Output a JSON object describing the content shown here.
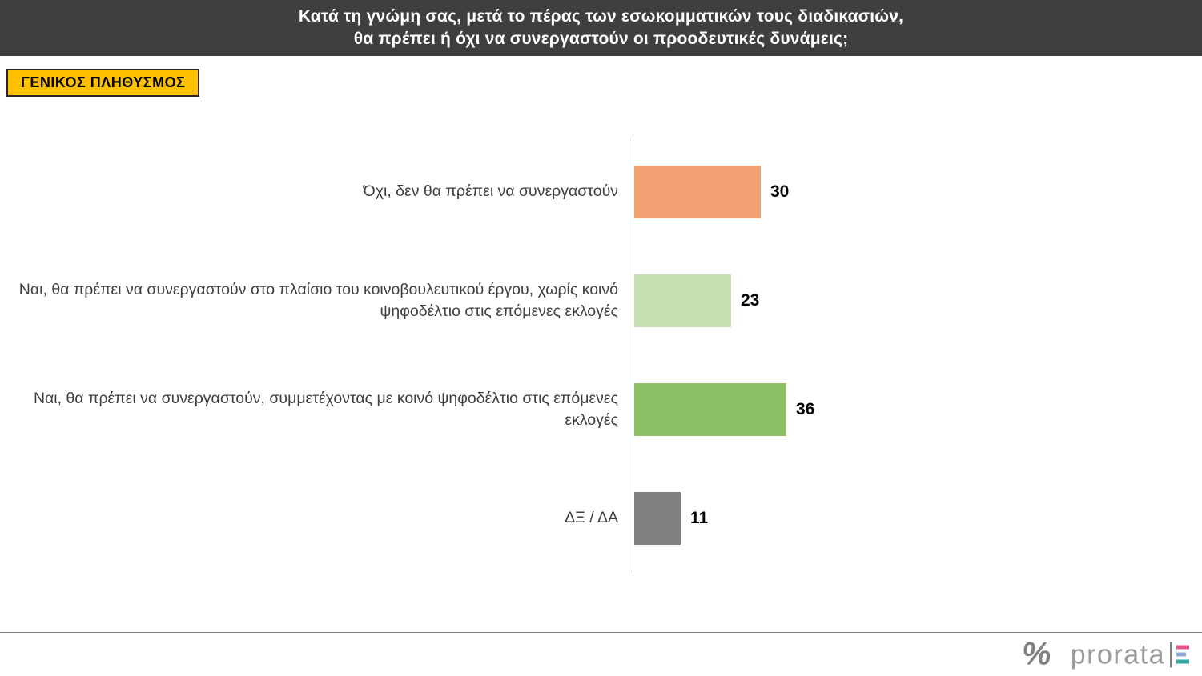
{
  "header": {
    "line1": "Κατά τη γνώμη σας, μετά το πέρας των εσωκομματικών τους διαδικασιών,",
    "line2": "θα πρέπει ή όχι να συνεργαστούν οι προοδευτικές δυνάμεις;"
  },
  "badge": {
    "label": "ΓΕΝΙΚΟΣ ΠΛΗΘΥΣΜΟΣ"
  },
  "chart_data": {
    "type": "bar",
    "orientation": "horizontal",
    "title": "Κατά τη γνώμη σας, μετά το πέρας των εσωκομματικών τους διαδικασιών, θα πρέπει ή όχι να συνεργαστούν οι προοδευτικές δυνάμεις;",
    "subtitle": "ΓΕΝΙΚΟΣ ΠΛΗΘΥΣΜΟΣ",
    "categories": [
      "Όχι, δεν θα πρέπει να συνεργαστούν",
      "Ναι, θα πρέπει να συνεργαστούν στο πλαίσιο του κοινοβουλευτικού έργου, χωρίς κοινό ψηφοδέλτιο στις επόμενες εκλογές",
      "Ναι, θα πρέπει να συνεργαστούν, συμμετέχοντας με κοινό ψηφοδέλτιο στις επόμενες εκλογές",
      "ΔΞ / ΔΑ"
    ],
    "values": [
      30,
      23,
      36,
      11
    ],
    "bar_colors": [
      "#F1A173",
      "#C6E0B4",
      "#8CC168",
      "#7F7F7F"
    ],
    "value_label_color": "#000000",
    "xlim": [
      0,
      40
    ],
    "grid": false,
    "legend": false,
    "data_labels": true
  },
  "footer": {
    "brand": "prorata",
    "percent_symbol": "%",
    "logo_mark_colors": [
      "#E8538B",
      "#8FAADC",
      "#2EA9A4"
    ],
    "divider_color": "#7F7F7F"
  },
  "colors": {
    "header_bg": "#3F3F3F",
    "badge_bg": "#FFC000",
    "axis": "#A6A6A6"
  }
}
